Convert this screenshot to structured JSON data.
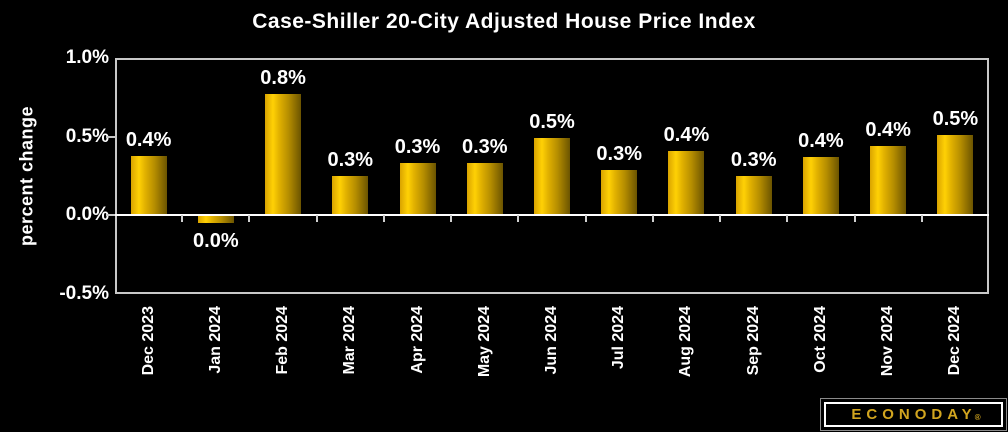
{
  "chart_data": {
    "type": "bar",
    "title": "Case-Shiller 20-City Adjusted House Price Index",
    "xlabel": "",
    "ylabel": "percent change",
    "categories": [
      "Dec 2023",
      "Jan 2024",
      "Feb 2024",
      "Mar 2024",
      "Apr 2024",
      "May 2024",
      "Jun 2024",
      "Jul 2024",
      "Aug 2024",
      "Sep 2024",
      "Oct 2024",
      "Nov 2024",
      "Dec 2024"
    ],
    "values": [
      0.38,
      -0.04,
      0.77,
      0.25,
      0.33,
      0.33,
      0.49,
      0.29,
      0.41,
      0.25,
      0.37,
      0.44,
      0.51
    ],
    "bar_labels": [
      "0.4%",
      "0.0%",
      "0.8%",
      "0.3%",
      "0.3%",
      "0.3%",
      "0.5%",
      "0.3%",
      "0.4%",
      "0.3%",
      "0.4%",
      "0.4%",
      "0.5%"
    ],
    "ylim": [
      -0.5,
      1.0
    ],
    "yticks": [
      {
        "value": 1.0,
        "label": "1.0%",
        "tick_mark": false
      },
      {
        "value": 0.5,
        "label": "0.5%",
        "tick_mark": true
      },
      {
        "value": 0.0,
        "label": "0.0%",
        "tick_mark": true
      },
      {
        "value": -0.5,
        "label": "-0.5%",
        "tick_mark": false
      }
    ],
    "grid": false,
    "legend_position": "none",
    "background_color": "#000000",
    "bar_color": "#ffd105",
    "bar_gradient": [
      "#d9a300",
      "#ffd105",
      "#6b5400"
    ],
    "frame_color": "#c9c9c9",
    "zero_line_color": "#ffffff",
    "text_color": "#ffffff"
  },
  "branding": {
    "logo_text": "ECONODAY",
    "registered_mark": "®",
    "logo_color": "#d2a51f"
  }
}
